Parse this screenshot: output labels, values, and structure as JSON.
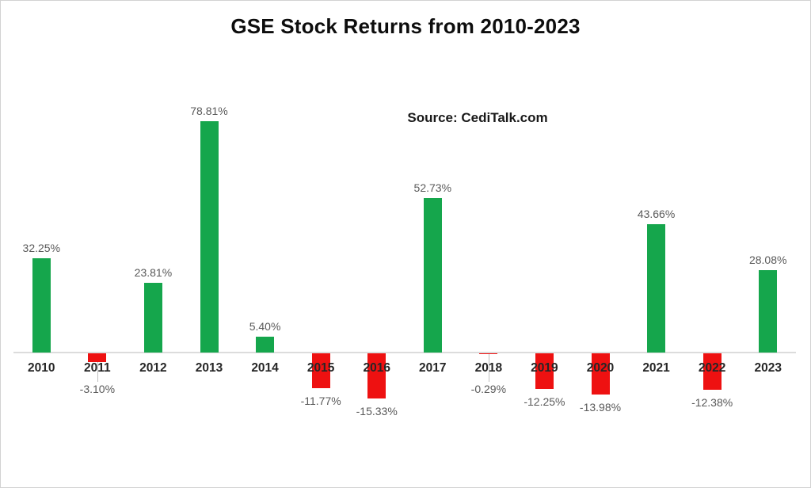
{
  "title": "GSE Stock Returns from 2010-2023",
  "source": "Source: CediTalk.com",
  "colors": {
    "positive_bar": "#15A64C",
    "negative_bar": "#EE1111",
    "axis_line": "#DCDCDC",
    "value_label_text": "#595959",
    "year_label_text": "#262626",
    "title_text": "#0D0D0D",
    "background": "#FFFFFF"
  },
  "chart_data": {
    "type": "bar",
    "title": "GSE Stock Returns from 2010-2023",
    "source": "Source: CediTalk.com",
    "categories": [
      "2010",
      "2011",
      "2012",
      "2013",
      "2014",
      "2015",
      "2016",
      "2017",
      "2018",
      "2019",
      "2020",
      "2021",
      "2022",
      "2023"
    ],
    "values": [
      32.25,
      -3.1,
      23.81,
      78.81,
      5.4,
      -11.77,
      -15.33,
      52.73,
      -0.29,
      -12.25,
      -13.98,
      43.66,
      -12.38,
      28.08
    ],
    "labels": [
      "32.25%",
      "-3.10%",
      "23.81%",
      "78.81%",
      "5.40%",
      "-11.77%",
      "-15.33%",
      "52.73%",
      "-0.29%",
      "-12.25%",
      "-13.98%",
      "43.66%",
      "-12.38%",
      "28.08%"
    ],
    "xlabel": "",
    "ylabel": "",
    "ylim": [
      -20,
      85
    ],
    "grid": false,
    "legend": false,
    "data_labels": "outside-end",
    "bar_colors": {
      "positive": "#15A64C",
      "negative": "#EE1111"
    }
  }
}
